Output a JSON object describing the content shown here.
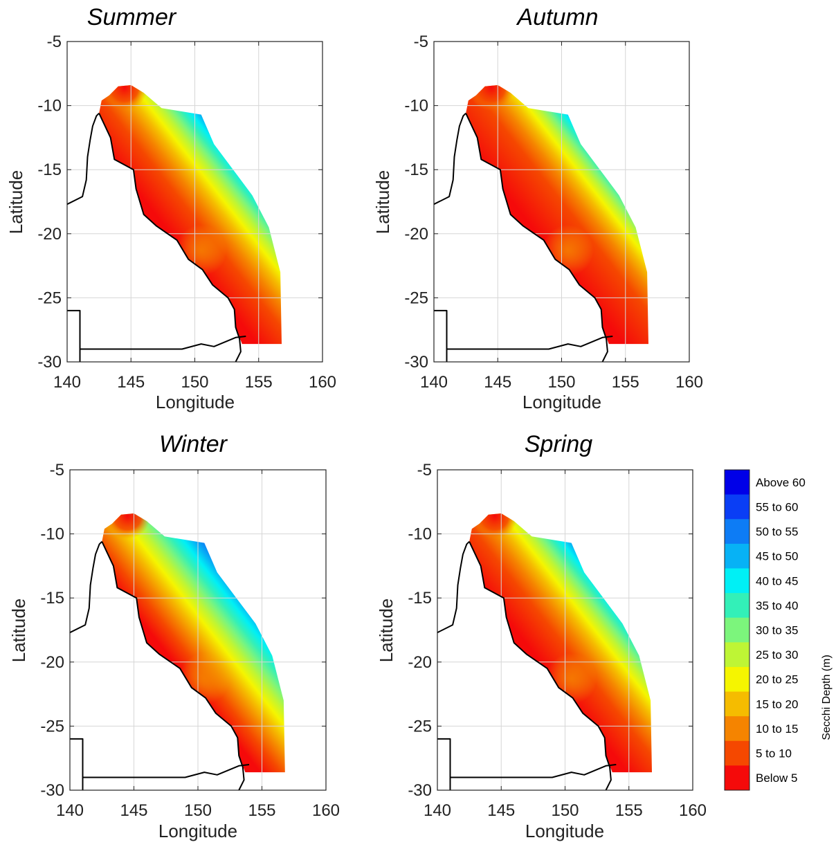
{
  "chart_data": {
    "type": "heatmap",
    "panels": [
      {
        "title": "Summer",
        "shift": 0
      },
      {
        "title": "Autumn",
        "shift": -1
      },
      {
        "title": "Winter",
        "shift": 2
      },
      {
        "title": "Spring",
        "shift": 0
      }
    ],
    "xlabel": "Longitude",
    "ylabel": "Latitude",
    "xlim": [
      140,
      160
    ],
    "ylim": [
      -30,
      -5
    ],
    "xticks": [
      "140",
      "145",
      "150",
      "155",
      "160"
    ],
    "yticks": [
      "-5",
      "-10",
      "-15",
      "-20",
      "-25",
      "-30"
    ],
    "grid": true,
    "colorbar": {
      "title": "Secchi Depth (m)",
      "position": "right",
      "classes": [
        {
          "label": "Above 60",
          "color": "#0000e8"
        },
        {
          "label": "55 to 60",
          "color": "#0a3ef5"
        },
        {
          "label": "50 to 55",
          "color": "#0d7cf5"
        },
        {
          "label": "45 to 50",
          "color": "#07b2f5"
        },
        {
          "label": "40 to 45",
          "color": "#00f0f5"
        },
        {
          "label": "35 to 40",
          "color": "#33f0b8"
        },
        {
          "label": "30 to 35",
          "color": "#7cf57c"
        },
        {
          "label": "25 to 30",
          "color": "#bef535"
        },
        {
          "label": "20 to 25",
          "color": "#f5f500"
        },
        {
          "label": "15 to 20",
          "color": "#f5bc00"
        },
        {
          "label": "10 to 15",
          "color": "#f58400"
        },
        {
          "label": "5 to 10",
          "color": "#f54800"
        },
        {
          "label": "Below 5",
          "color": "#f50a0a"
        }
      ]
    },
    "coast_outline": [
      [
        142.5,
        -10.6
      ],
      [
        143.4,
        -12.5
      ],
      [
        143.7,
        -14.2
      ],
      [
        145.2,
        -15.0
      ],
      [
        145.4,
        -16.5
      ],
      [
        146.0,
        -18.5
      ],
      [
        147.0,
        -19.4
      ],
      [
        148.6,
        -20.5
      ],
      [
        149.5,
        -22.0
      ],
      [
        150.6,
        -22.8
      ],
      [
        151.4,
        -24.0
      ],
      [
        152.6,
        -25.0
      ],
      [
        153.1,
        -25.9
      ],
      [
        153.2,
        -27.3
      ],
      [
        153.5,
        -28.2
      ],
      [
        153.6,
        -29.2
      ],
      [
        153.2,
        -30
      ]
    ],
    "gulf_outline": [
      [
        140,
        -17.7
      ],
      [
        141.2,
        -17.1
      ],
      [
        141.5,
        -15.8
      ],
      [
        141.6,
        -14.0
      ],
      [
        141.8,
        -12.7
      ],
      [
        142.0,
        -11.6
      ],
      [
        142.3,
        -10.8
      ],
      [
        142.5,
        -10.6
      ]
    ],
    "nsw_border": [
      [
        141,
        -29
      ],
      [
        149,
        -29
      ],
      [
        150.5,
        -28.6
      ],
      [
        151.5,
        -28.8
      ],
      [
        153.2,
        -28.1
      ],
      [
        154,
        -28
      ]
    ],
    "sa_border": [
      [
        140,
        -26
      ],
      [
        141,
        -26
      ],
      [
        141,
        -30
      ]
    ],
    "gbr_region": [
      [
        142.5,
        -10.6
      ],
      [
        142.7,
        -9.6
      ],
      [
        143.3,
        -9.2
      ],
      [
        144.0,
        -8.5
      ],
      [
        145.0,
        -8.4
      ],
      [
        146.0,
        -9.0
      ],
      [
        147.4,
        -10.2
      ],
      [
        150.5,
        -10.7
      ],
      [
        151.5,
        -13.0
      ],
      [
        153.0,
        -15.0
      ],
      [
        154.5,
        -17.0
      ],
      [
        155.8,
        -19.5
      ],
      [
        156.7,
        -23.0
      ],
      [
        156.8,
        -28.6
      ],
      [
        153.7,
        -28.6
      ],
      [
        153.2,
        -27.3
      ],
      [
        153.1,
        -25.9
      ],
      [
        152.6,
        -25.0
      ],
      [
        151.4,
        -24.0
      ],
      [
        150.6,
        -22.8
      ],
      [
        149.5,
        -22.0
      ],
      [
        148.6,
        -20.5
      ],
      [
        147.0,
        -19.4
      ],
      [
        146.0,
        -18.5
      ],
      [
        145.4,
        -16.5
      ],
      [
        145.2,
        -15.0
      ],
      [
        143.7,
        -14.2
      ],
      [
        143.4,
        -12.5
      ]
    ]
  }
}
